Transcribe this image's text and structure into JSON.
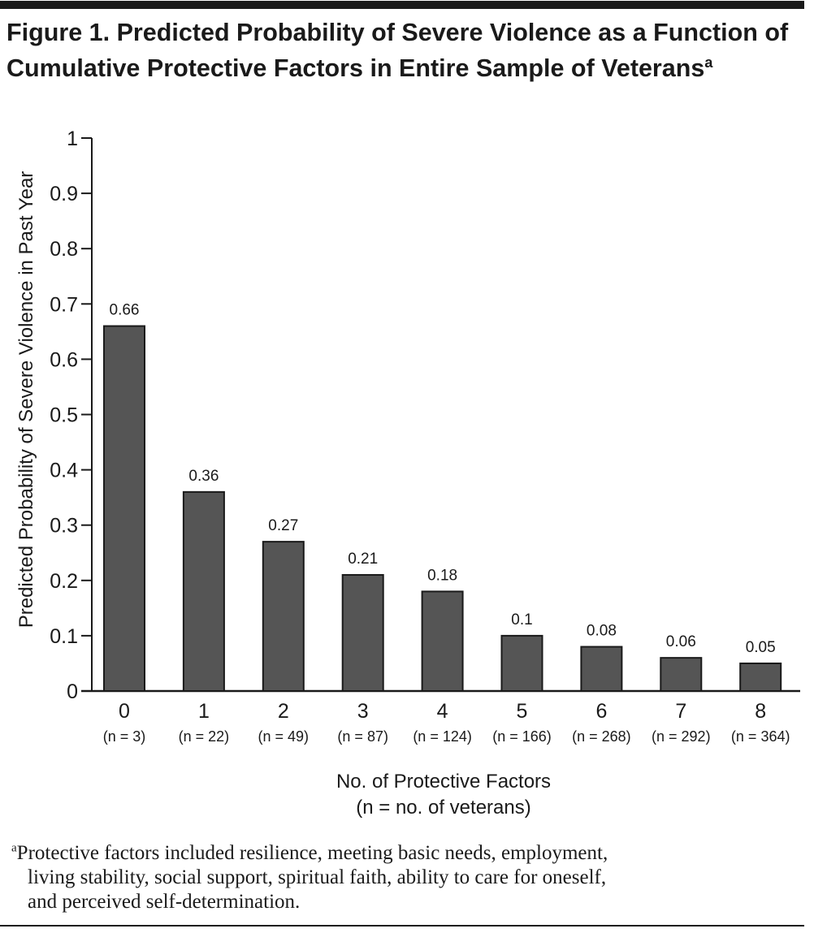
{
  "title": "Figure 1. Predicted Probability of Severe Violence as a Function of Cumulative Protective Factors in Entire Sample of Veterans",
  "title_superscript": "a",
  "chart_data": {
    "type": "bar",
    "title": "Figure 1. Predicted Probability of Severe Violence as a Function of Cumulative Protective Factors in Entire Sample of Veterans",
    "xlabel": "No. of Protective Factors",
    "xlabel_sub": "(n = no. of veterans)",
    "ylabel": "Predicted Probability of Severe Violence in Past Year",
    "ylim": [
      0,
      1
    ],
    "yticks": [
      "0",
      "0.1",
      "0.2",
      "0.3",
      "0.4",
      "0.5",
      "0.6",
      "0.7",
      "0.8",
      "0.9",
      "1"
    ],
    "categories": [
      "0",
      "1",
      "2",
      "3",
      "4",
      "5",
      "6",
      "7",
      "8"
    ],
    "category_n": [
      "(n = 3)",
      "(n = 22)",
      "(n = 49)",
      "(n = 87)",
      "(n = 124)",
      "(n = 166)",
      "(n = 268)",
      "(n = 292)",
      "(n = 364)"
    ],
    "values": [
      0.66,
      0.36,
      0.27,
      0.21,
      0.18,
      0.1,
      0.08,
      0.06,
      0.05
    ],
    "data_labels": [
      "0.66",
      "0.36",
      "0.27",
      "0.21",
      "0.18",
      "0.1",
      "0.08",
      "0.06",
      "0.05"
    ],
    "bar_color": "#555555",
    "grid": false
  },
  "footnote": {
    "marker": "a",
    "line1": "Protective factors included resilience, meeting basic needs, employment,",
    "line2": "living stability, social support, spiritual faith, ability to care for oneself,",
    "line3": "and perceived self-determination."
  }
}
